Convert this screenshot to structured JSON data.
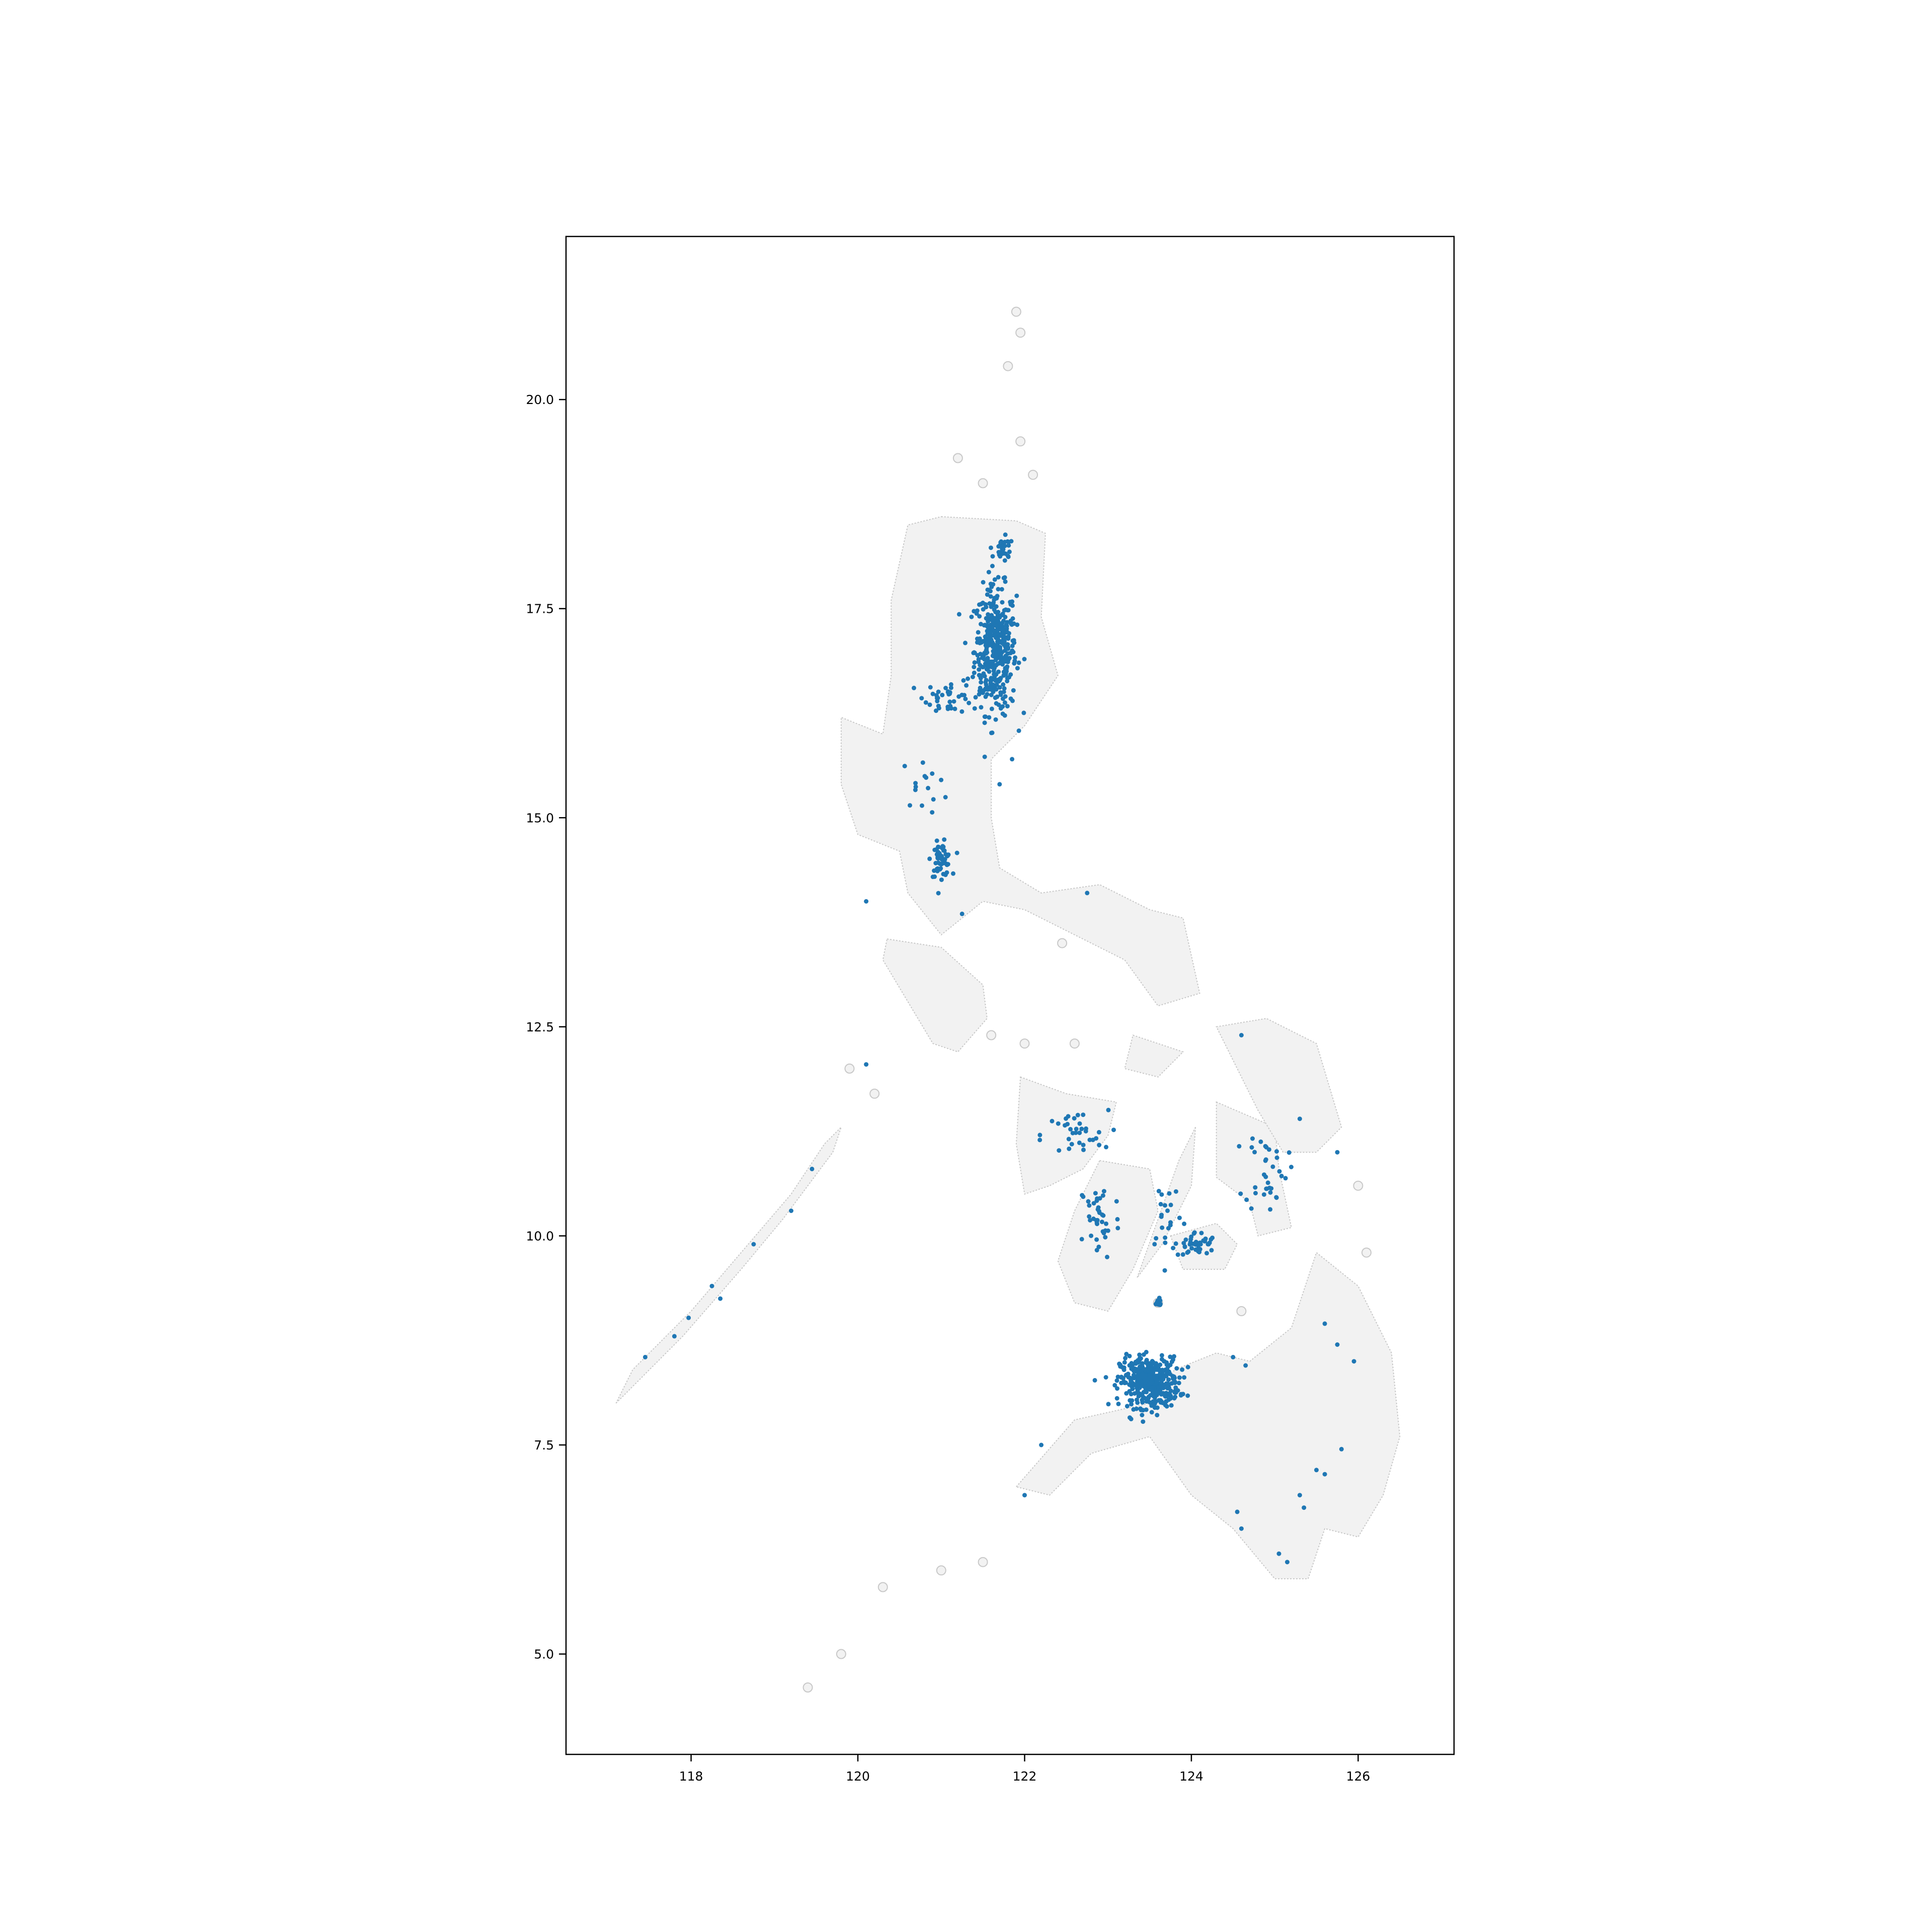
{
  "chart_data": {
    "type": "scatter",
    "title": "",
    "xlabel": "",
    "ylabel": "",
    "xlim": [
      116.5,
      127.15
    ],
    "ylim": [
      3.8,
      21.95
    ],
    "grid": false,
    "x_ticks": [
      118,
      120,
      122,
      124,
      126
    ],
    "x_tick_labels": [
      "118",
      "120",
      "122",
      "124",
      "126"
    ],
    "y_ticks": [
      5.0,
      7.5,
      10.0,
      12.5,
      15.0,
      17.5,
      20.0
    ],
    "y_tick_labels": [
      "5.0",
      "7.5",
      "10.0",
      "12.5",
      "15.0",
      "17.5",
      "20.0"
    ],
    "colors": {
      "point": "#1f77b4",
      "land_fill": "#f2f2f2",
      "land_edge": "#c8c8c8",
      "frame": "#000000"
    },
    "basemap": {
      "description_label": "",
      "regions": [
        {
          "name": "luzon",
          "lonlat": [
            [
              121.0,
              18.6
            ],
            [
              121.9,
              18.55
            ],
            [
              122.25,
              18.4
            ],
            [
              122.2,
              17.4
            ],
            [
              122.4,
              16.7
            ],
            [
              122.0,
              16.1
            ],
            [
              121.6,
              15.7
            ],
            [
              121.6,
              15.0
            ],
            [
              121.7,
              14.4
            ],
            [
              122.2,
              14.1
            ],
            [
              122.9,
              14.2
            ],
            [
              123.5,
              13.9
            ],
            [
              123.9,
              13.8
            ],
            [
              124.1,
              12.9
            ],
            [
              123.6,
              12.75
            ],
            [
              123.2,
              13.3
            ],
            [
              122.6,
              13.6
            ],
            [
              122.0,
              13.9
            ],
            [
              121.5,
              14.0
            ],
            [
              121.0,
              13.6
            ],
            [
              120.6,
              14.1
            ],
            [
              120.5,
              14.6
            ],
            [
              120.0,
              14.8
            ],
            [
              119.8,
              15.4
            ],
            [
              119.8,
              16.2
            ],
            [
              120.3,
              16.0
            ],
            [
              120.4,
              16.7
            ],
            [
              120.4,
              17.6
            ],
            [
              120.6,
              18.5
            ]
          ]
        },
        {
          "name": "mindoro",
          "lonlat": [
            [
              120.35,
              13.55
            ],
            [
              121.0,
              13.45
            ],
            [
              121.5,
              13.0
            ],
            [
              121.55,
              12.6
            ],
            [
              121.2,
              12.2
            ],
            [
              120.9,
              12.3
            ],
            [
              120.6,
              12.8
            ],
            [
              120.3,
              13.3
            ]
          ]
        },
        {
          "name": "panay",
          "lonlat": [
            [
              121.95,
              11.9
            ],
            [
              122.5,
              11.7
            ],
            [
              123.1,
              11.6
            ],
            [
              123.0,
              11.2
            ],
            [
              122.7,
              10.8
            ],
            [
              122.3,
              10.6
            ],
            [
              122.0,
              10.5
            ],
            [
              121.9,
              11.1
            ]
          ]
        },
        {
          "name": "negros",
          "lonlat": [
            [
              122.9,
              10.9
            ],
            [
              123.5,
              10.8
            ],
            [
              123.6,
              10.3
            ],
            [
              123.3,
              9.6
            ],
            [
              123.0,
              9.1
            ],
            [
              122.6,
              9.2
            ],
            [
              122.4,
              9.7
            ],
            [
              122.6,
              10.3
            ]
          ]
        },
        {
          "name": "cebu",
          "lonlat": [
            [
              124.05,
              11.3
            ],
            [
              124.0,
              10.6
            ],
            [
              123.65,
              9.9
            ],
            [
              123.35,
              9.5
            ],
            [
              123.6,
              10.2
            ],
            [
              123.85,
              10.9
            ]
          ]
        },
        {
          "name": "bohol",
          "lonlat": [
            [
              123.75,
              10.0
            ],
            [
              124.3,
              10.15
            ],
            [
              124.55,
              9.9
            ],
            [
              124.4,
              9.6
            ],
            [
              123.9,
              9.6
            ]
          ]
        },
        {
          "name": "leyte",
          "lonlat": [
            [
              124.3,
              11.6
            ],
            [
              125.0,
              11.3
            ],
            [
              125.05,
              10.8
            ],
            [
              125.2,
              10.1
            ],
            [
              124.8,
              10.0
            ],
            [
              124.7,
              10.4
            ],
            [
              124.3,
              10.7
            ]
          ]
        },
        {
          "name": "samar",
          "lonlat": [
            [
              124.3,
              12.5
            ],
            [
              124.9,
              12.6
            ],
            [
              125.5,
              12.3
            ],
            [
              125.8,
              11.3
            ],
            [
              125.5,
              11.0
            ],
            [
              125.1,
              11.0
            ],
            [
              124.8,
              11.5
            ],
            [
              124.6,
              11.9
            ]
          ]
        },
        {
          "name": "masbate",
          "lonlat": [
            [
              123.3,
              12.4
            ],
            [
              123.9,
              12.2
            ],
            [
              123.6,
              11.9
            ],
            [
              123.2,
              12.0
            ]
          ]
        },
        {
          "name": "mindanao",
          "lonlat": [
            [
              121.9,
              7.0
            ],
            [
              122.6,
              7.8
            ],
            [
              123.5,
              8.0
            ],
            [
              123.8,
              8.4
            ],
            [
              124.3,
              8.6
            ],
            [
              124.7,
              8.5
            ],
            [
              125.2,
              8.9
            ],
            [
              125.5,
              9.8
            ],
            [
              126.0,
              9.4
            ],
            [
              126.4,
              8.6
            ],
            [
              126.5,
              7.6
            ],
            [
              126.3,
              6.9
            ],
            [
              126.0,
              6.4
            ],
            [
              125.6,
              6.5
            ],
            [
              125.4,
              5.9
            ],
            [
              125.0,
              5.9
            ],
            [
              124.5,
              6.5
            ],
            [
              124.0,
              6.9
            ],
            [
              123.5,
              7.6
            ],
            [
              122.8,
              7.4
            ],
            [
              122.3,
              6.9
            ]
          ]
        },
        {
          "name": "palawan",
          "lonlat": [
            [
              117.1,
              8.0
            ],
            [
              117.9,
              8.8
            ],
            [
              118.6,
              9.6
            ],
            [
              119.1,
              10.2
            ],
            [
              119.7,
              11.0
            ],
            [
              119.8,
              11.3
            ],
            [
              119.6,
              11.1
            ],
            [
              119.2,
              10.5
            ],
            [
              118.6,
              9.8
            ],
            [
              118.0,
              9.1
            ],
            [
              117.3,
              8.4
            ]
          ]
        }
      ],
      "islets": [
        [
          121.9,
          21.05
        ],
        [
          121.8,
          20.4
        ],
        [
          121.95,
          20.8
        ],
        [
          121.2,
          19.3
        ],
        [
          121.5,
          19.0
        ],
        [
          122.1,
          19.1
        ],
        [
          121.95,
          19.5
        ],
        [
          122.45,
          13.5
        ],
        [
          121.6,
          12.4
        ],
        [
          122.0,
          12.3
        ],
        [
          122.6,
          12.3
        ],
        [
          119.9,
          12.0
        ],
        [
          120.2,
          11.7
        ],
        [
          123.6,
          9.2
        ],
        [
          124.6,
          9.1
        ],
        [
          120.3,
          5.8
        ],
        [
          121.0,
          6.0
        ],
        [
          121.5,
          6.1
        ],
        [
          119.8,
          5.0
        ],
        [
          119.4,
          4.6
        ],
        [
          126.1,
          9.8
        ],
        [
          126.0,
          10.6
        ]
      ]
    },
    "series": [
      {
        "clusters": [
          {
            "center": [
              121.65,
              17.0
            ],
            "spread": [
              0.25,
              0.75
            ],
            "count": 420
          },
          {
            "center": [
              121.75,
              18.2
            ],
            "spread": [
              0.12,
              0.15
            ],
            "count": 30
          },
          {
            "center": [
              121.1,
              16.45
            ],
            "spread": [
              0.3,
              0.2
            ],
            "count": 40
          },
          {
            "center": [
              121.0,
              14.5
            ],
            "spread": [
              0.12,
              0.2
            ],
            "count": 60
          },
          {
            "center": [
              120.8,
              15.4
            ],
            "spread": [
              0.3,
              0.3
            ],
            "count": 15
          },
          {
            "center": [
              122.6,
              11.2
            ],
            "spread": [
              0.4,
              0.3
            ],
            "count": 35
          },
          {
            "center": [
              122.9,
              10.2
            ],
            "spread": [
              0.25,
              0.5
            ],
            "count": 40
          },
          {
            "center": [
              123.7,
              10.3
            ],
            "spread": [
              0.2,
              0.5
            ],
            "count": 20
          },
          {
            "center": [
              124.05,
              9.9
            ],
            "spread": [
              0.25,
              0.15
            ],
            "count": 45
          },
          {
            "center": [
              124.9,
              10.8
            ],
            "spread": [
              0.25,
              0.5
            ],
            "count": 35
          },
          {
            "center": [
              123.6,
              9.2
            ],
            "spread": [
              0.05,
              0.05
            ],
            "count": 15
          },
          {
            "center": [
              123.5,
              8.25
            ],
            "spread": [
              0.35,
              0.3
            ],
            "count": 400
          }
        ],
        "points": [
          [
            117.45,
            8.55
          ],
          [
            117.8,
            8.8
          ],
          [
            117.97,
            9.02
          ],
          [
            118.25,
            9.4
          ],
          [
            118.35,
            9.25
          ],
          [
            118.75,
            9.9
          ],
          [
            119.2,
            10.3
          ],
          [
            119.45,
            10.8
          ],
          [
            120.1,
            12.05
          ],
          [
            122.75,
            14.1
          ],
          [
            124.6,
            12.4
          ],
          [
            124.5,
            8.55
          ],
          [
            124.65,
            8.45
          ],
          [
            125.6,
            8.95
          ],
          [
            125.75,
            8.7
          ],
          [
            125.95,
            8.5
          ],
          [
            122.2,
            7.5
          ],
          [
            122.0,
            6.9
          ],
          [
            124.55,
            6.7
          ],
          [
            124.6,
            6.5
          ],
          [
            125.3,
            6.9
          ],
          [
            125.35,
            6.75
          ],
          [
            125.5,
            7.2
          ],
          [
            125.6,
            7.15
          ],
          [
            125.8,
            7.45
          ],
          [
            125.05,
            6.2
          ],
          [
            125.15,
            6.1
          ],
          [
            125.75,
            11.0
          ],
          [
            125.3,
            11.4
          ],
          [
            120.1,
            14.0
          ],
          [
            121.25,
            13.85
          ],
          [
            121.85,
            15.7
          ],
          [
            121.7,
            15.4
          ]
        ]
      }
    ]
  }
}
